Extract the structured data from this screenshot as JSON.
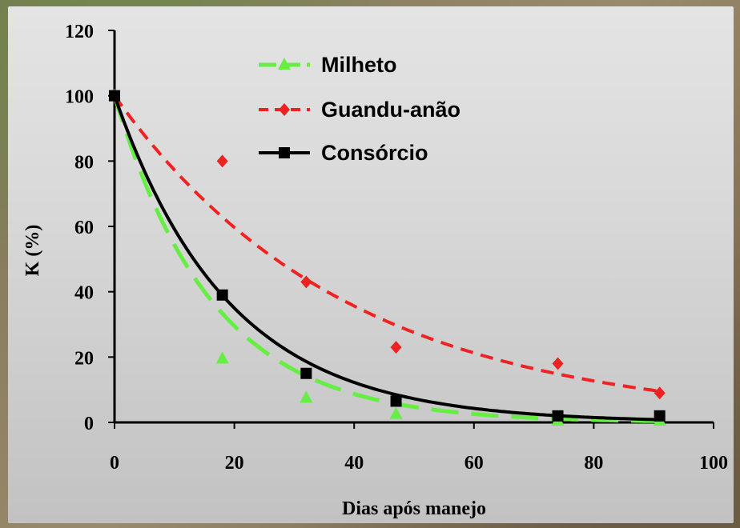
{
  "chart_data": {
    "type": "scatter",
    "xlabel": "Dias após manejo",
    "ylabel": "K (%)",
    "xlim": [
      0,
      100
    ],
    "ylim": [
      0,
      120
    ],
    "xticks": [
      0,
      20,
      40,
      60,
      80,
      100
    ],
    "yticks": [
      0,
      20,
      40,
      60,
      80,
      100,
      120
    ],
    "grid": false,
    "legend_position": "top-center",
    "series": [
      {
        "name": "Milheto",
        "marker": "triangle",
        "color": "#66ee44",
        "line_style": "long-dash",
        "x": [
          0,
          18,
          32,
          47,
          74,
          91
        ],
        "y": [
          100,
          19.5,
          7.5,
          2.5,
          0.5,
          0.5
        ],
        "trend": {
          "type": "exponential",
          "a": 100,
          "k": 0.061
        }
      },
      {
        "name": "Guandu-anão",
        "marker": "diamond",
        "color": "#ee2222",
        "line_style": "dash",
        "x": [
          0,
          18,
          32,
          47,
          74,
          91
        ],
        "y": [
          100,
          80,
          43,
          23,
          18,
          9
        ],
        "trend": {
          "type": "exponential",
          "a": 100,
          "k": 0.0258
        }
      },
      {
        "name": "Consórcio",
        "marker": "square",
        "color": "#000000",
        "line_style": "solid",
        "x": [
          0,
          18,
          32,
          47,
          74,
          91
        ],
        "y": [
          100,
          39,
          15,
          6.5,
          2,
          2
        ],
        "trend": {
          "type": "exponential",
          "a": 100,
          "k": 0.0525
        }
      }
    ]
  }
}
